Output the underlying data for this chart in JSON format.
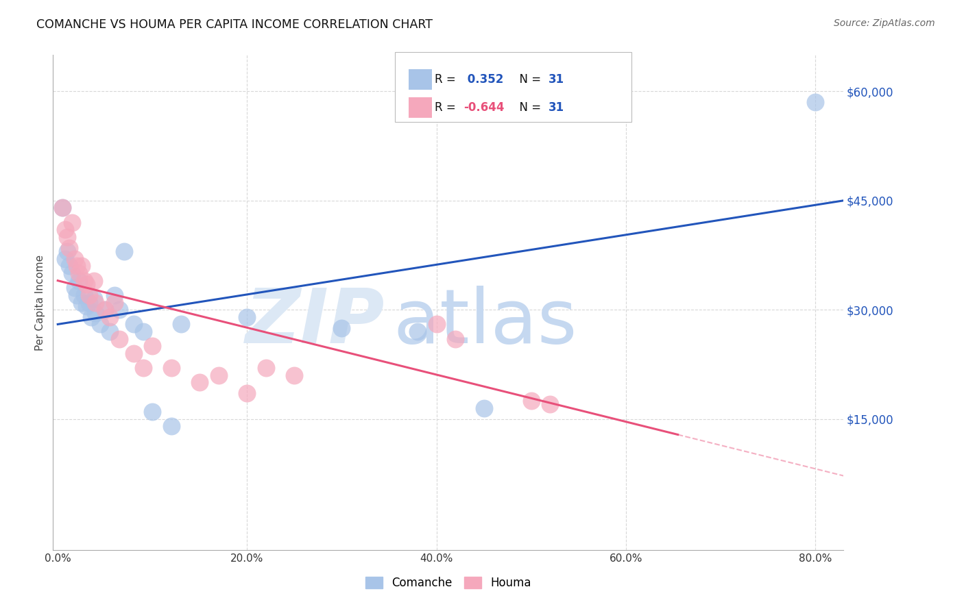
{
  "title": "COMANCHE VS HOUMA PER CAPITA INCOME CORRELATION CHART",
  "source": "Source: ZipAtlas.com",
  "ylabel": "Per Capita Income",
  "xlabel_ticks": [
    "0.0%",
    "20.0%",
    "40.0%",
    "60.0%",
    "80.0%"
  ],
  "xlabel_vals": [
    0.0,
    0.2,
    0.4,
    0.6,
    0.8
  ],
  "ytick_vals": [
    0,
    15000,
    30000,
    45000,
    60000
  ],
  "ytick_labels": [
    "",
    "$15,000",
    "$30,000",
    "$45,000",
    "$60,000"
  ],
  "xlim": [
    -0.005,
    0.83
  ],
  "ylim": [
    -3000,
    65000
  ],
  "R_comanche": 0.352,
  "R_houma": -0.644,
  "N": 31,
  "comanche_color": "#a8c4e8",
  "houma_color": "#f5a8bc",
  "line_blue": "#2255bb",
  "line_pink": "#e8507a",
  "watermark_zip": "ZIP",
  "watermark_atlas": "atlas",
  "watermark_color_zip": "#dce8f5",
  "watermark_color_atlas": "#c5d8f0",
  "background_color": "#ffffff",
  "grid_color": "#d8d8d8",
  "comanche_x": [
    0.005,
    0.008,
    0.01,
    0.012,
    0.015,
    0.018,
    0.02,
    0.022,
    0.025,
    0.028,
    0.03,
    0.033,
    0.035,
    0.038,
    0.04,
    0.045,
    0.05,
    0.055,
    0.06,
    0.065,
    0.07,
    0.08,
    0.09,
    0.1,
    0.12,
    0.13,
    0.2,
    0.3,
    0.38,
    0.45,
    0.8
  ],
  "comanche_y": [
    44000,
    37000,
    38000,
    36000,
    35000,
    33000,
    32000,
    34000,
    31000,
    32000,
    30500,
    31000,
    29000,
    31500,
    29500,
    28000,
    30000,
    27000,
    32000,
    30000,
    38000,
    28000,
    27000,
    16000,
    14000,
    28000,
    29000,
    27500,
    27000,
    16500,
    58500
  ],
  "houma_x": [
    0.005,
    0.008,
    0.01,
    0.012,
    0.015,
    0.018,
    0.02,
    0.022,
    0.025,
    0.028,
    0.03,
    0.033,
    0.038,
    0.04,
    0.05,
    0.055,
    0.06,
    0.065,
    0.08,
    0.09,
    0.1,
    0.12,
    0.15,
    0.17,
    0.2,
    0.22,
    0.25,
    0.5,
    0.52,
    0.4,
    0.42
  ],
  "houma_y": [
    44000,
    41000,
    40000,
    38500,
    42000,
    37000,
    36000,
    35000,
    36000,
    34000,
    33500,
    32000,
    34000,
    31000,
    30000,
    29000,
    31000,
    26000,
    24000,
    22000,
    25000,
    22000,
    20000,
    21000,
    18500,
    22000,
    21000,
    17500,
    17000,
    28000,
    26000
  ]
}
